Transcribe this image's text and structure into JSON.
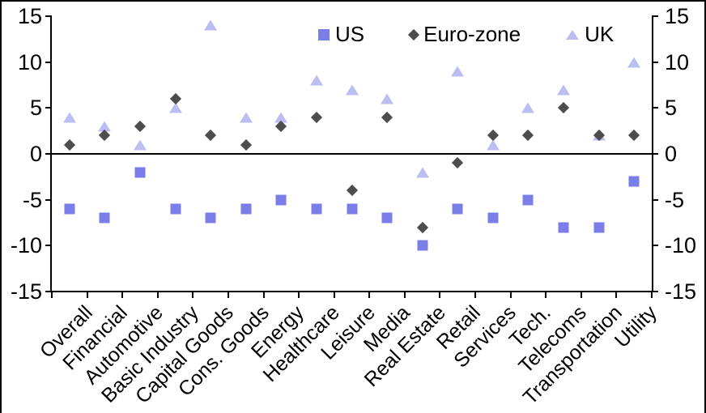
{
  "chart_data": {
    "type": "scatter",
    "title": "",
    "categories": [
      "Overall",
      "Financial",
      "Automotive",
      "Basic Industry",
      "Capital Goods",
      "Cons. Goods",
      "Energy",
      "Healthcare",
      "Leisure",
      "Media",
      "Real Estate",
      "Retail",
      "Services",
      "Tech.",
      "Telecoms",
      "Transportation",
      "Utility"
    ],
    "series": [
      {
        "name": "US",
        "marker": "square",
        "color": "#7b7de8",
        "values": [
          -6,
          -7,
          -2,
          -6,
          -7,
          -6,
          -5,
          -6,
          -6,
          -7,
          -10,
          -6,
          -7,
          -5,
          -8,
          -8,
          -3
        ]
      },
      {
        "name": "Euro-zone",
        "marker": "diamond",
        "color": "#4d4d4d",
        "values": [
          1,
          2,
          3,
          6,
          2,
          1,
          3,
          4,
          -4,
          4,
          -8,
          -1,
          2,
          2,
          5,
          2,
          2
        ]
      },
      {
        "name": "UK",
        "marker": "triangle",
        "color": "#bcbef2",
        "values": [
          4,
          3,
          1,
          5,
          14,
          4,
          4,
          8,
          7,
          6,
          -2,
          9,
          1,
          5,
          7,
          2,
          10
        ]
      }
    ],
    "ylim": [
      -15,
      15
    ],
    "yticks": [
      15,
      10,
      5,
      0,
      -5,
      -10,
      -15
    ],
    "xlabel": "",
    "ylabel": "",
    "legend_position": "top",
    "grid": false,
    "zero_line": true,
    "axis_color": "#000000",
    "background_color": "#ffffff"
  }
}
